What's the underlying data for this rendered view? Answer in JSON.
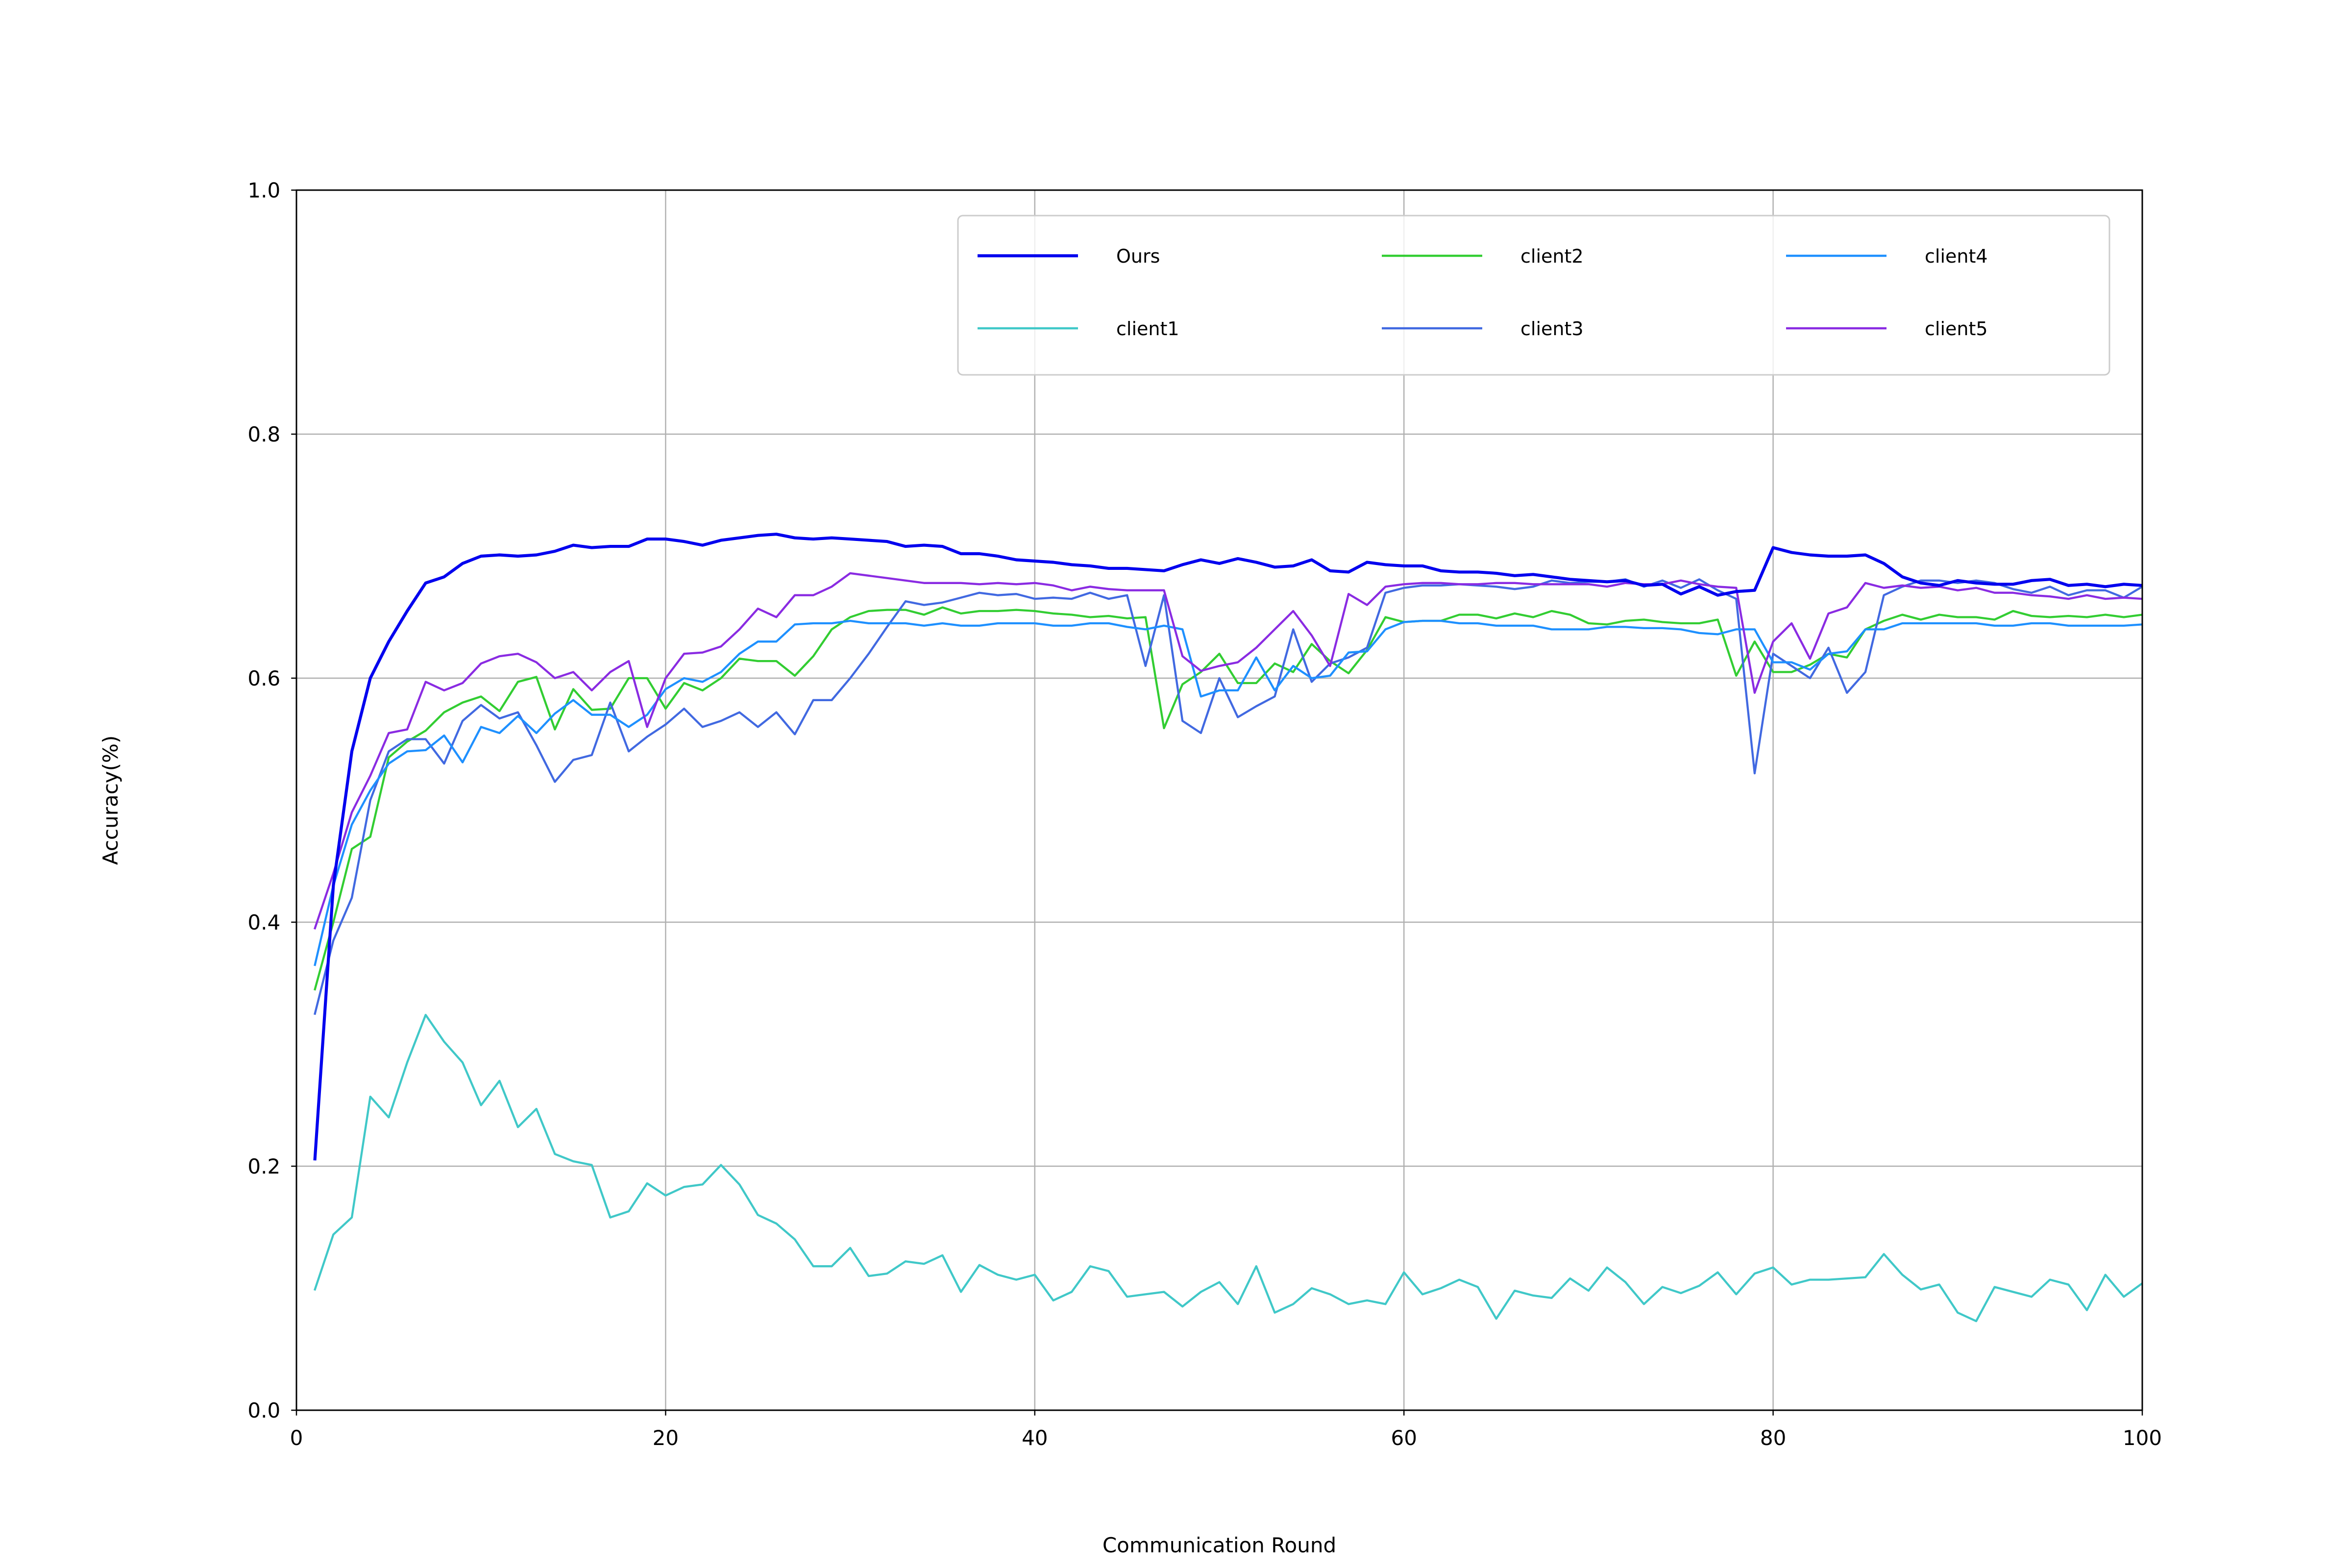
{
  "chart_data": {
    "type": "line",
    "xlabel": "Communication Round",
    "ylabel": "Accuracy(%)",
    "xlim": [
      0,
      100
    ],
    "ylim": [
      0.0,
      1.0
    ],
    "x_ticks": [
      "0",
      "20",
      "40",
      "60",
      "80",
      "100"
    ],
    "y_ticks": [
      "0.0",
      "0.2",
      "0.4",
      "0.6",
      "0.8",
      "1.0"
    ],
    "grid": true,
    "legend_position": "top-right",
    "legend_columns": 3,
    "x": [
      1,
      2,
      3,
      4,
      5,
      6,
      7,
      8,
      9,
      10,
      11,
      12,
      13,
      14,
      15,
      16,
      17,
      18,
      19,
      20,
      21,
      22,
      23,
      24,
      25,
      26,
      27,
      28,
      29,
      30,
      31,
      32,
      33,
      34,
      35,
      36,
      37,
      38,
      39,
      40,
      41,
      42,
      43,
      44,
      45,
      46,
      47,
      48,
      49,
      50,
      51,
      52,
      53,
      54,
      55,
      56,
      57,
      58,
      59,
      60,
      61,
      62,
      63,
      64,
      65,
      66,
      67,
      68,
      69,
      70,
      71,
      72,
      73,
      74,
      75,
      76,
      77,
      78,
      79,
      80,
      81,
      82,
      83,
      84,
      85,
      86,
      87,
      88,
      89,
      90,
      91,
      92,
      93,
      94,
      95,
      96,
      97,
      98,
      99,
      100
    ],
    "series": [
      {
        "name": "Ours",
        "color": "#0000ee",
        "width": 2,
        "values": [
          0.206,
          0.43,
          0.54,
          0.6,
          0.63,
          0.655,
          0.678,
          0.683,
          0.694,
          0.7,
          0.701,
          0.7,
          0.701,
          0.704,
          0.709,
          0.707,
          0.708,
          0.708,
          0.714,
          0.714,
          0.712,
          0.709,
          0.713,
          0.715,
          0.717,
          0.718,
          0.715,
          0.714,
          0.715,
          0.714,
          0.713,
          0.712,
          0.708,
          0.709,
          0.708,
          0.702,
          0.702,
          0.7,
          0.697,
          0.696,
          0.695,
          0.693,
          0.692,
          0.69,
          0.69,
          0.689,
          0.688,
          0.693,
          0.697,
          0.694,
          0.698,
          0.695,
          0.691,
          0.692,
          0.697,
          0.688,
          0.687,
          0.695,
          0.693,
          0.692,
          0.692,
          0.688,
          0.687,
          0.687,
          0.686,
          0.684,
          0.685,
          0.683,
          0.681,
          0.68,
          0.679,
          0.68,
          0.676,
          0.677,
          0.669,
          0.675,
          0.668,
          0.671,
          0.672,
          0.707,
          0.703,
          0.701,
          0.7,
          0.7,
          0.701,
          0.694,
          0.683,
          0.678,
          0.676,
          0.68,
          0.678,
          0.677,
          0.677,
          0.68,
          0.681,
          0.676,
          0.677,
          0.675,
          0.677,
          0.676
        ]
      },
      {
        "name": "client1",
        "color": "#40c8c8",
        "width": 1.4,
        "values": [
          0.099,
          0.144,
          0.158,
          0.257,
          0.24,
          0.285,
          0.324,
          0.302,
          0.285,
          0.25,
          0.27,
          0.232,
          0.247,
          0.21,
          0.204,
          0.201,
          0.158,
          0.163,
          0.186,
          0.176,
          0.183,
          0.185,
          0.201,
          0.185,
          0.16,
          0.153,
          0.14,
          0.118,
          0.118,
          0.133,
          0.11,
          0.112,
          0.122,
          0.12,
          0.127,
          0.097,
          0.119,
          0.111,
          0.107,
          0.111,
          0.09,
          0.097,
          0.118,
          0.114,
          0.093,
          0.095,
          0.097,
          0.085,
          0.097,
          0.105,
          0.087,
          0.118,
          0.08,
          0.087,
          0.1,
          0.095,
          0.087,
          0.09,
          0.087,
          0.113,
          0.095,
          0.1,
          0.107,
          0.101,
          0.075,
          0.098,
          0.094,
          0.092,
          0.108,
          0.098,
          0.117,
          0.105,
          0.087,
          0.101,
          0.096,
          0.102,
          0.113,
          0.095,
          0.112,
          0.117,
          0.103,
          0.107,
          0.107,
          0.108,
          0.109,
          0.128,
          0.111,
          0.099,
          0.103,
          0.08,
          0.073,
          0.101,
          0.097,
          0.093,
          0.107,
          0.103,
          0.082,
          0.111,
          0.093,
          0.104
        ]
      },
      {
        "name": "client2",
        "color": "#32cd32",
        "width": 1.4,
        "values": [
          0.345,
          0.4,
          0.46,
          0.47,
          0.535,
          0.548,
          0.557,
          0.572,
          0.58,
          0.585,
          0.573,
          0.597,
          0.601,
          0.558,
          0.591,
          0.574,
          0.575,
          0.6,
          0.6,
          0.575,
          0.596,
          0.59,
          0.6,
          0.616,
          0.614,
          0.614,
          0.602,
          0.618,
          0.64,
          0.65,
          0.655,
          0.656,
          0.656,
          0.652,
          0.658,
          0.653,
          0.655,
          0.655,
          0.656,
          0.655,
          0.653,
          0.652,
          0.65,
          0.651,
          0.649,
          0.65,
          0.559,
          0.595,
          0.605,
          0.62,
          0.596,
          0.596,
          0.612,
          0.605,
          0.628,
          0.614,
          0.604,
          0.623,
          0.65,
          0.646,
          0.647,
          0.647,
          0.652,
          0.652,
          0.649,
          0.653,
          0.65,
          0.655,
          0.652,
          0.645,
          0.644,
          0.647,
          0.648,
          0.646,
          0.645,
          0.645,
          0.648,
          0.602,
          0.63,
          0.605,
          0.605,
          0.611,
          0.62,
          0.617,
          0.64,
          0.647,
          0.652,
          0.648,
          0.652,
          0.65,
          0.65,
          0.648,
          0.655,
          0.651,
          0.65,
          0.651,
          0.65,
          0.652,
          0.65,
          0.652
        ]
      },
      {
        "name": "client3",
        "color": "#4169e1",
        "width": 1.4,
        "values": [
          0.325,
          0.385,
          0.42,
          0.5,
          0.54,
          0.55,
          0.55,
          0.53,
          0.565,
          0.578,
          0.567,
          0.572,
          0.545,
          0.515,
          0.533,
          0.537,
          0.58,
          0.54,
          0.552,
          0.562,
          0.575,
          0.56,
          0.565,
          0.572,
          0.56,
          0.572,
          0.554,
          0.582,
          0.582,
          0.6,
          0.62,
          0.642,
          0.663,
          0.66,
          0.662,
          0.666,
          0.67,
          0.668,
          0.669,
          0.665,
          0.666,
          0.665,
          0.67,
          0.665,
          0.668,
          0.61,
          0.668,
          0.565,
          0.555,
          0.6,
          0.568,
          0.577,
          0.585,
          0.64,
          0.597,
          0.612,
          0.617,
          0.625,
          0.67,
          0.674,
          0.676,
          0.676,
          0.677,
          0.676,
          0.675,
          0.673,
          0.675,
          0.68,
          0.678,
          0.679,
          0.679,
          0.681,
          0.675,
          0.68,
          0.674,
          0.681,
          0.672,
          0.665,
          0.522,
          0.62,
          0.61,
          0.6,
          0.625,
          0.588,
          0.605,
          0.668,
          0.675,
          0.68,
          0.68,
          0.678,
          0.68,
          0.678,
          0.673,
          0.67,
          0.675,
          0.668,
          0.672,
          0.672,
          0.666,
          0.675
        ]
      },
      {
        "name": "client4",
        "color": "#1e90ff",
        "width": 1.4,
        "values": [
          0.365,
          0.43,
          0.48,
          0.508,
          0.53,
          0.54,
          0.541,
          0.553,
          0.531,
          0.56,
          0.555,
          0.569,
          0.555,
          0.571,
          0.582,
          0.57,
          0.57,
          0.56,
          0.57,
          0.591,
          0.6,
          0.597,
          0.605,
          0.62,
          0.63,
          0.63,
          0.644,
          0.645,
          0.645,
          0.647,
          0.645,
          0.645,
          0.645,
          0.643,
          0.645,
          0.643,
          0.643,
          0.645,
          0.645,
          0.645,
          0.643,
          0.643,
          0.645,
          0.645,
          0.642,
          0.64,
          0.643,
          0.64,
          0.585,
          0.59,
          0.59,
          0.617,
          0.59,
          0.61,
          0.6,
          0.602,
          0.621,
          0.622,
          0.64,
          0.646,
          0.647,
          0.647,
          0.645,
          0.645,
          0.643,
          0.643,
          0.643,
          0.64,
          0.64,
          0.64,
          0.642,
          0.642,
          0.641,
          0.641,
          0.64,
          0.637,
          0.636,
          0.64,
          0.64,
          0.613,
          0.613,
          0.607,
          0.62,
          0.622,
          0.64,
          0.64,
          0.645,
          0.645,
          0.645,
          0.645,
          0.645,
          0.643,
          0.643,
          0.645,
          0.645,
          0.643,
          0.643,
          0.643,
          0.643,
          0.644
        ]
      },
      {
        "name": "client5",
        "color": "#8a2be2",
        "width": 1.4,
        "values": [
          0.395,
          0.44,
          0.49,
          0.52,
          0.555,
          0.558,
          0.597,
          0.59,
          0.596,
          0.612,
          0.618,
          0.62,
          0.613,
          0.6,
          0.605,
          0.59,
          0.605,
          0.614,
          0.56,
          0.6,
          0.62,
          0.621,
          0.626,
          0.64,
          0.657,
          0.65,
          0.668,
          0.668,
          0.675,
          0.686,
          0.684,
          0.682,
          0.68,
          0.678,
          0.678,
          0.678,
          0.677,
          0.678,
          0.677,
          0.678,
          0.676,
          0.672,
          0.675,
          0.673,
          0.672,
          0.672,
          0.672,
          0.618,
          0.606,
          0.61,
          0.613,
          0.625,
          0.64,
          0.655,
          0.635,
          0.61,
          0.669,
          0.66,
          0.675,
          0.677,
          0.678,
          0.678,
          0.677,
          0.677,
          0.678,
          0.678,
          0.677,
          0.677,
          0.677,
          0.677,
          0.675,
          0.678,
          0.677,
          0.677,
          0.68,
          0.677,
          0.675,
          0.674,
          0.588,
          0.63,
          0.645,
          0.616,
          0.653,
          0.658,
          0.678,
          0.674,
          0.676,
          0.674,
          0.675,
          0.672,
          0.674,
          0.67,
          0.67,
          0.668,
          0.667,
          0.665,
          0.668,
          0.665,
          0.666,
          0.665
        ]
      }
    ]
  }
}
